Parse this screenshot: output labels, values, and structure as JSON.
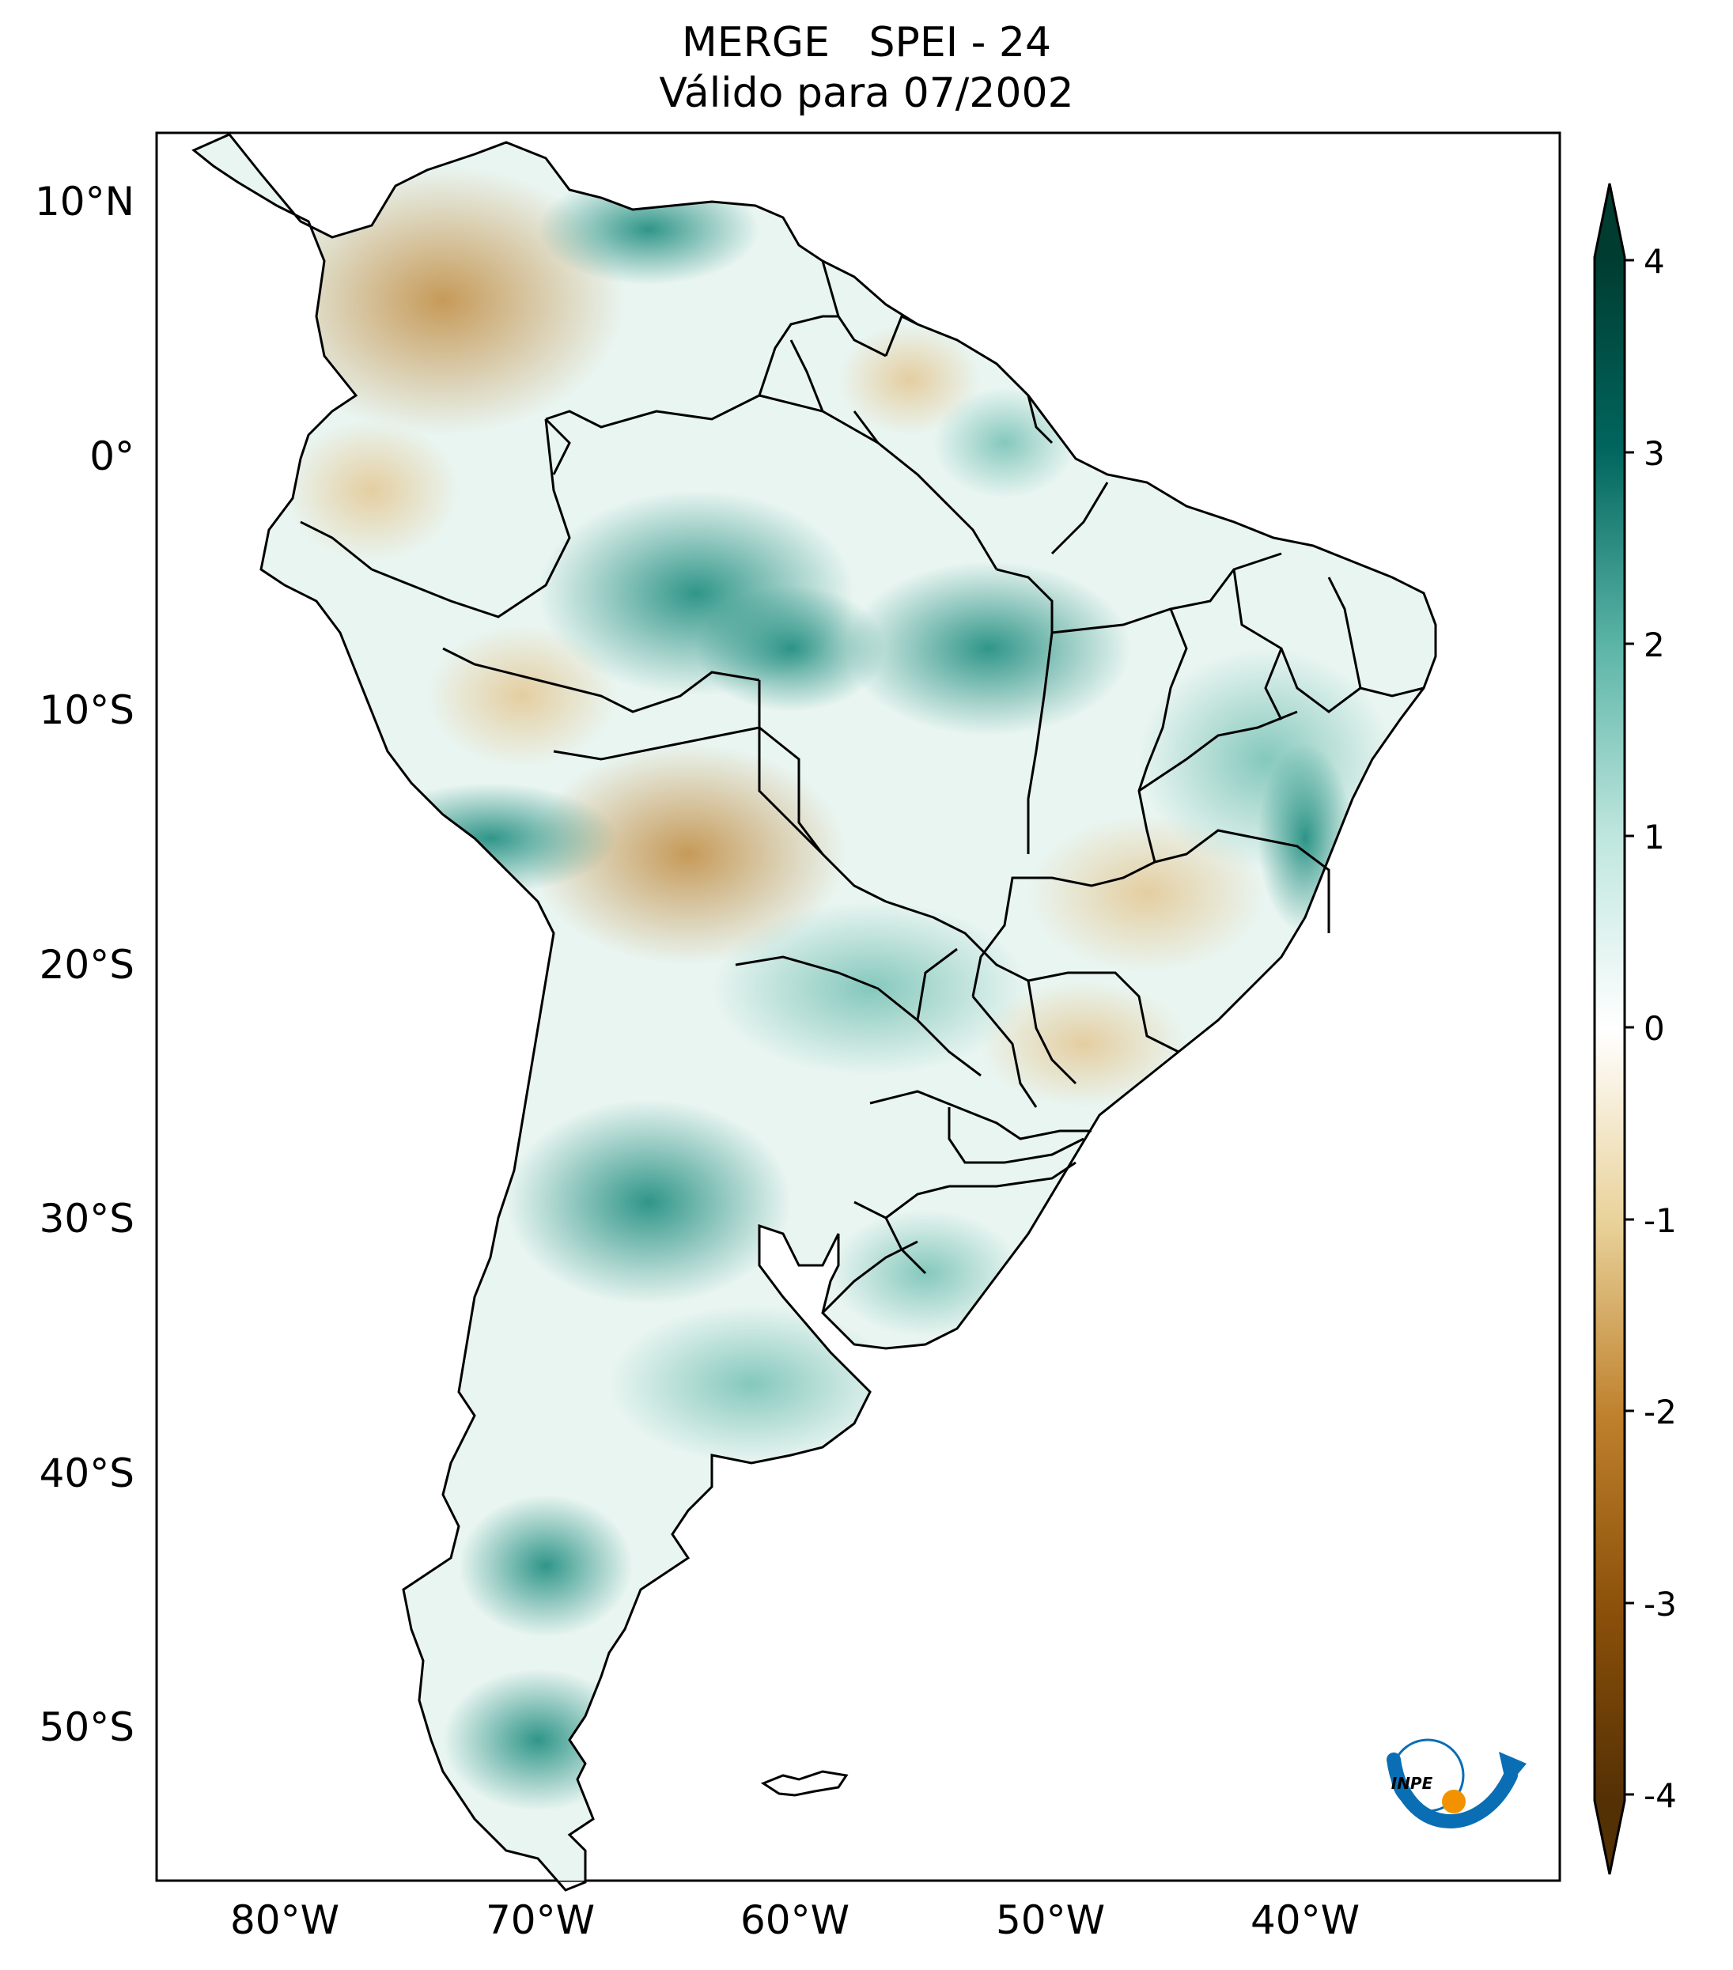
{
  "title": {
    "line1": "MERGE   SPEI - 24",
    "line2": "Válido para 07/2002"
  },
  "map": {
    "lat_ticks": [
      "10°N",
      "0°",
      "10°S",
      "20°S",
      "30°S",
      "40°S",
      "50°S"
    ],
    "lon_ticks": [
      "80°W",
      "70°W",
      "60°W",
      "50°W",
      "40°W"
    ],
    "extent": {
      "lon": [
        -85,
        -30
      ],
      "lat": [
        -56,
        13
      ]
    }
  },
  "colorbar": {
    "ticks": [
      "4",
      "3",
      "2",
      "1",
      "0",
      "-1",
      "-2",
      "-3",
      "-4"
    ],
    "range": [
      -4,
      4
    ],
    "extend": "both",
    "colormap": "BrBG",
    "colors": {
      "min": "#543005",
      "neutral": "#ffffff",
      "max": "#003c30"
    }
  },
  "logo": {
    "text": "INPE",
    "colors": {
      "arc": "#0a6eb4",
      "dot": "#f39200"
    }
  }
}
